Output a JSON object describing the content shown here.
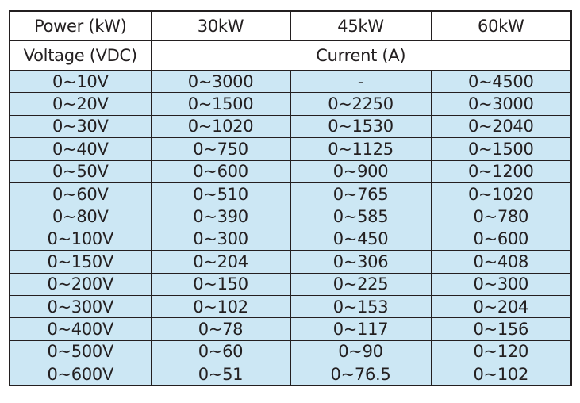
{
  "table": {
    "header_power": [
      "Power (kW)",
      "30kW",
      "45kW",
      "60kW"
    ],
    "header_voltage_label": "Voltage (VDC)",
    "header_current_label": "Current (A)",
    "rows": [
      [
        "0~10V",
        "0~3000",
        "-",
        "0~4500"
      ],
      [
        "0~20V",
        "0~1500",
        "0~2250",
        "0~3000"
      ],
      [
        "0~30V",
        "0~1020",
        "0~1530",
        "0~2040"
      ],
      [
        "0~40V",
        "0~750",
        "0~1125",
        "0~1500"
      ],
      [
        "0~50V",
        "0~600",
        "0~900",
        "0~1200"
      ],
      [
        "0~60V",
        "0~510",
        "0~765",
        "0~1020"
      ],
      [
        "0~80V",
        "0~390",
        "0~585",
        "0~780"
      ],
      [
        "0~100V",
        "0~300",
        "0~450",
        "0~600"
      ],
      [
        "0~150V",
        "0~204",
        "0~306",
        "0~408"
      ],
      [
        "0~200V",
        "0~150",
        "0~225",
        "0~300"
      ],
      [
        "0~300V",
        "0~102",
        "0~153",
        "0~204"
      ],
      [
        "0~400V",
        "0~78",
        "0~117",
        "0~156"
      ],
      [
        "0~500V",
        "0~60",
        "0~90",
        "0~120"
      ],
      [
        "0~600V",
        "0~51",
        "0~76.5",
        "0~102"
      ]
    ]
  },
  "colors": {
    "data_row_bg": "#cce7f4",
    "border": "#231f20",
    "text": "#231f20"
  }
}
